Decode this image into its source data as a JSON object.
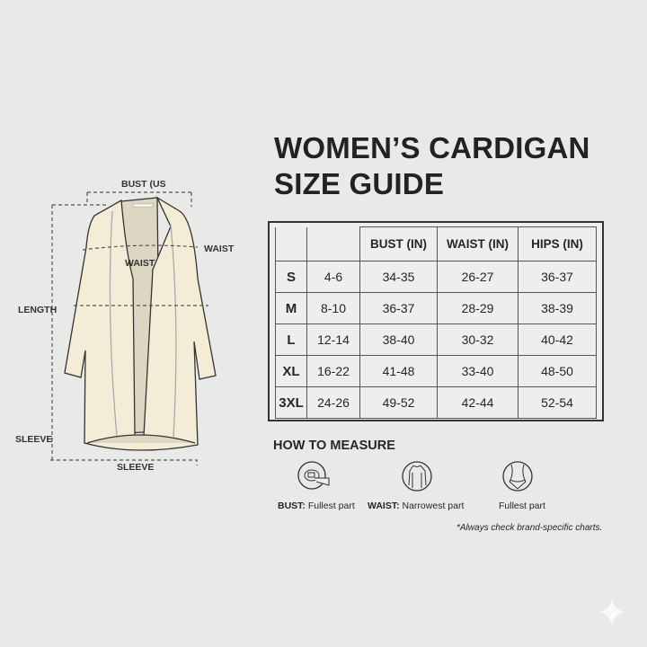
{
  "title_lines": [
    "WOMEN’S CARDIGAN",
    "SIZE GUIDE"
  ],
  "diagram": {
    "bust": "BUST (US",
    "waist_right": "WAIST",
    "waist_inner": "WAIST",
    "length": "LENGTH",
    "sleeve_left": "SLEEVE",
    "sleeve_bottom": "SLEEVE"
  },
  "table": {
    "headers": [
      "",
      "",
      "BUST (IN)",
      "WAIST (IN)",
      "HIPS (IN)"
    ],
    "rows": [
      [
        "S",
        "4-6",
        "34-35",
        "26-27",
        "36-37"
      ],
      [
        "M",
        "8-10",
        "36-37",
        "28-29",
        "38-39"
      ],
      [
        "L",
        "12-14",
        "38-40",
        "30-32",
        "40-42"
      ],
      [
        "XL",
        "16-22",
        "41-48",
        "33-40",
        "48-50"
      ],
      [
        "3XL",
        "24-26",
        "49-52",
        "42-44",
        "52-54"
      ]
    ]
  },
  "how_to_measure": {
    "heading": "HOW TO MEASURE",
    "items": [
      {
        "icon": "tape-measure-icon",
        "label_bold": "BUST:",
        "label": " Fullest part"
      },
      {
        "icon": "torso-icon",
        "label_bold": "WAIST:",
        "label": " Narrowest part"
      },
      {
        "icon": "hips-icon",
        "label_bold": "",
        "label": "Fullest part"
      }
    ],
    "note": "*Always check brand-specific charts."
  },
  "colors": {
    "background": "#e9e9e8",
    "garment": "#f3ecd6",
    "lining": "#ddd6c2"
  }
}
